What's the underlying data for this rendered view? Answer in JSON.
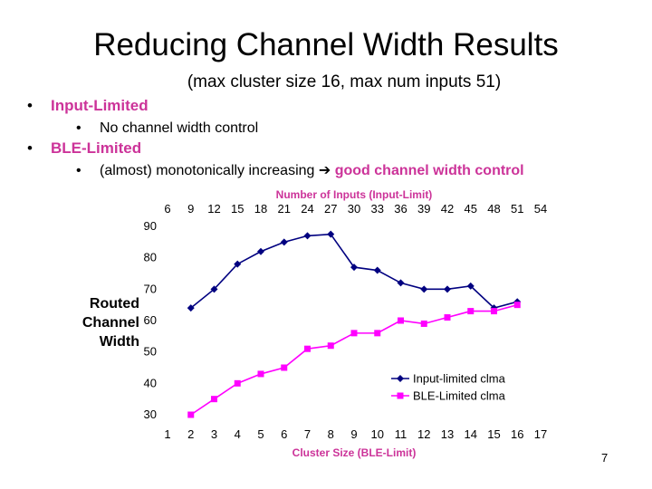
{
  "slide": {
    "title": "Reducing Channel Width Results",
    "subtitle": "(max cluster size 16, max num inputs 51)",
    "bullets": {
      "b1": "Input-Limited",
      "b1a": "No channel width control",
      "b2": "BLE-Limited",
      "b2a_prefix": "(almost) monotonically increasing ",
      "b2a_arrow": "➔",
      "b2a_highlight": "good channel width control",
      "bullet_char": "•"
    },
    "page_number": "7"
  },
  "chart_data": {
    "type": "line",
    "xlabel": "Cluster Size (BLE-Limit)",
    "x2label": "Number of Inputs (Input-Limit)",
    "ylabel": "Routed Channel Width",
    "x_ticks": [
      "1",
      "2",
      "3",
      "4",
      "5",
      "6",
      "7",
      "8",
      "9",
      "10",
      "11",
      "12",
      "13",
      "14",
      "15",
      "16",
      "17"
    ],
    "x2_ticks": [
      "6",
      "9",
      "12",
      "15",
      "18",
      "21",
      "24",
      "27",
      "30",
      "33",
      "36",
      "39",
      "42",
      "45",
      "48",
      "51",
      "54"
    ],
    "y_ticks": [
      "30",
      "40",
      "50",
      "60",
      "70",
      "80",
      "90"
    ],
    "xlim": [
      1,
      17
    ],
    "ylim": [
      30,
      90
    ],
    "legend_position": "bottom-right",
    "series": [
      {
        "name": "Input-limited clma",
        "color": "#000080",
        "marker": "diamond",
        "x": [
          2,
          3,
          4,
          5,
          6,
          7,
          8,
          9,
          10,
          11,
          12,
          13,
          14,
          15,
          16
        ],
        "values": [
          64,
          70,
          78,
          82,
          85,
          87,
          87.5,
          77,
          76,
          72,
          70,
          70,
          71,
          64,
          66
        ]
      },
      {
        "name": "BLE-Limited clma",
        "color": "#ff00ff",
        "marker": "square",
        "x": [
          2,
          3,
          4,
          5,
          6,
          7,
          8,
          9,
          10,
          11,
          12,
          13,
          14,
          15,
          16
        ],
        "values": [
          30,
          35,
          40,
          43,
          45,
          51,
          52,
          56,
          56,
          60,
          59,
          61,
          63,
          63,
          65
        ]
      }
    ]
  }
}
